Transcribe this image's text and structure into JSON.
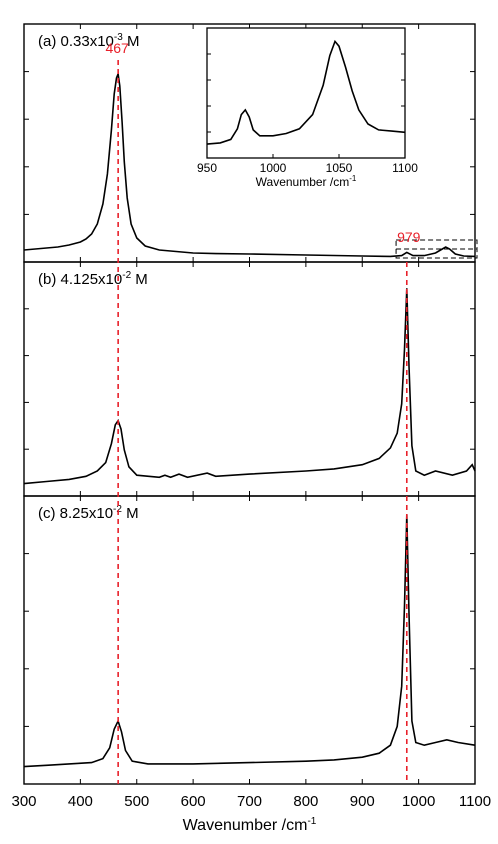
{
  "chart_data": {
    "type": "line",
    "xlabel_main": "Wavenumber /cm",
    "xlabel_sup": "-1",
    "xlim": [
      300,
      1100
    ],
    "xticks": [
      300,
      400,
      500,
      600,
      700,
      800,
      900,
      1000,
      1100
    ],
    "markers": [
      {
        "x": 467,
        "label": "467"
      },
      {
        "x": 979,
        "label": "979"
      }
    ],
    "marker_color": "#e8202a",
    "panels": [
      {
        "label_pre": "(a) 0.33x10",
        "label_sup": "-3",
        "label_post": " M",
        "ylim": [
          0,
          1
        ],
        "points": [
          [
            300,
            0.04
          ],
          [
            320,
            0.045
          ],
          [
            340,
            0.05
          ],
          [
            360,
            0.055
          ],
          [
            380,
            0.065
          ],
          [
            400,
            0.08
          ],
          [
            410,
            0.095
          ],
          [
            420,
            0.12
          ],
          [
            430,
            0.17
          ],
          [
            440,
            0.27
          ],
          [
            448,
            0.42
          ],
          [
            455,
            0.64
          ],
          [
            460,
            0.82
          ],
          [
            464,
            0.9
          ],
          [
            467,
            0.92
          ],
          [
            470,
            0.86
          ],
          [
            474,
            0.68
          ],
          [
            478,
            0.48
          ],
          [
            483,
            0.3
          ],
          [
            490,
            0.17
          ],
          [
            500,
            0.1
          ],
          [
            515,
            0.06
          ],
          [
            540,
            0.04
          ],
          [
            600,
            0.025
          ],
          [
            640,
            0.022
          ],
          [
            700,
            0.02
          ],
          [
            800,
            0.015
          ],
          [
            900,
            0.01
          ],
          [
            950,
            0.008
          ],
          [
            970,
            0.012
          ],
          [
            979,
            0.028
          ],
          [
            990,
            0.012
          ],
          [
            1010,
            0.012
          ],
          [
            1030,
            0.025
          ],
          [
            1042,
            0.045
          ],
          [
            1048,
            0.055
          ],
          [
            1055,
            0.045
          ],
          [
            1065,
            0.02
          ],
          [
            1080,
            0.01
          ],
          [
            1100,
            0.008
          ]
        ]
      },
      {
        "label_pre": "(b) 4.125x10",
        "label_sup": "-2",
        "label_post": " M",
        "ylim": [
          0,
          1
        ],
        "points": [
          [
            300,
            0.04
          ],
          [
            340,
            0.05
          ],
          [
            380,
            0.06
          ],
          [
            410,
            0.075
          ],
          [
            430,
            0.1
          ],
          [
            445,
            0.14
          ],
          [
            455,
            0.23
          ],
          [
            462,
            0.32
          ],
          [
            467,
            0.34
          ],
          [
            472,
            0.3
          ],
          [
            478,
            0.2
          ],
          [
            486,
            0.12
          ],
          [
            500,
            0.08
          ],
          [
            540,
            0.07
          ],
          [
            550,
            0.08
          ],
          [
            560,
            0.07
          ],
          [
            575,
            0.085
          ],
          [
            590,
            0.07
          ],
          [
            625,
            0.09
          ],
          [
            640,
            0.075
          ],
          [
            700,
            0.085
          ],
          [
            800,
            0.1
          ],
          [
            850,
            0.11
          ],
          [
            900,
            0.13
          ],
          [
            930,
            0.16
          ],
          [
            950,
            0.21
          ],
          [
            962,
            0.28
          ],
          [
            970,
            0.42
          ],
          [
            975,
            0.68
          ],
          [
            979,
            0.97
          ],
          [
            983,
            0.6
          ],
          [
            988,
            0.22
          ],
          [
            995,
            0.1
          ],
          [
            1010,
            0.08
          ],
          [
            1030,
            0.1
          ],
          [
            1060,
            0.08
          ],
          [
            1085,
            0.1
          ],
          [
            1095,
            0.13
          ],
          [
            1100,
            0.1
          ]
        ]
      },
      {
        "label_pre": "(c) 8.25x10",
        "label_sup": "-2",
        "label_post": " M",
        "ylim": [
          0,
          1
        ],
        "points": [
          [
            300,
            0.05
          ],
          [
            340,
            0.055
          ],
          [
            380,
            0.06
          ],
          [
            420,
            0.065
          ],
          [
            440,
            0.08
          ],
          [
            452,
            0.12
          ],
          [
            460,
            0.19
          ],
          [
            467,
            0.22
          ],
          [
            473,
            0.18
          ],
          [
            480,
            0.11
          ],
          [
            492,
            0.07
          ],
          [
            520,
            0.06
          ],
          [
            600,
            0.06
          ],
          [
            700,
            0.065
          ],
          [
            800,
            0.07
          ],
          [
            850,
            0.075
          ],
          [
            900,
            0.085
          ],
          [
            930,
            0.1
          ],
          [
            950,
            0.13
          ],
          [
            962,
            0.2
          ],
          [
            970,
            0.35
          ],
          [
            975,
            0.65
          ],
          [
            979,
            0.99
          ],
          [
            983,
            0.62
          ],
          [
            988,
            0.22
          ],
          [
            995,
            0.14
          ],
          [
            1010,
            0.13
          ],
          [
            1030,
            0.14
          ],
          [
            1050,
            0.15
          ],
          [
            1070,
            0.14
          ],
          [
            1100,
            0.13
          ]
        ]
      }
    ],
    "inset": {
      "type": "line",
      "xlim": [
        950,
        1100
      ],
      "xticks": [
        950,
        1000,
        1050,
        1100
      ],
      "xlabel_main": "Wavenumber /cm",
      "xlabel_sup": "-1",
      "ylim": [
        0,
        1
      ],
      "points": [
        [
          950,
          0.05
        ],
        [
          960,
          0.06
        ],
        [
          968,
          0.09
        ],
        [
          973,
          0.18
        ],
        [
          976,
          0.3
        ],
        [
          979,
          0.34
        ],
        [
          982,
          0.28
        ],
        [
          985,
          0.17
        ],
        [
          990,
          0.12
        ],
        [
          1000,
          0.12
        ],
        [
          1010,
          0.14
        ],
        [
          1020,
          0.18
        ],
        [
          1030,
          0.3
        ],
        [
          1038,
          0.55
        ],
        [
          1043,
          0.8
        ],
        [
          1047,
          0.92
        ],
        [
          1050,
          0.88
        ],
        [
          1055,
          0.7
        ],
        [
          1060,
          0.5
        ],
        [
          1065,
          0.34
        ],
        [
          1072,
          0.22
        ],
        [
          1080,
          0.17
        ],
        [
          1090,
          0.16
        ],
        [
          1100,
          0.15
        ]
      ]
    }
  }
}
